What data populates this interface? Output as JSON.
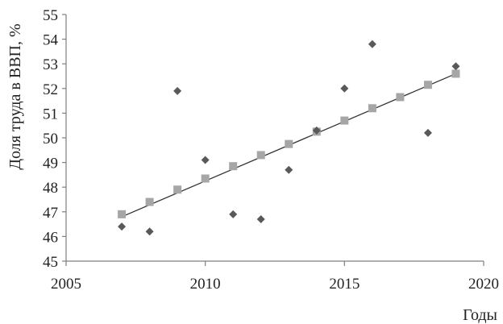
{
  "chart_data": {
    "type": "scatter",
    "title": "",
    "xlabel": "Годы",
    "ylabel": "Доля труда в ВВП, %",
    "xlim": [
      2005,
      2020
    ],
    "ylim": [
      45,
      55
    ],
    "x_ticks": [
      "2005",
      "2010",
      "2015",
      "2020"
    ],
    "y_ticks": [
      "45",
      "46",
      "47",
      "48",
      "49",
      "50",
      "51",
      "52",
      "53",
      "54",
      "55"
    ],
    "grid": false,
    "legend": "none",
    "series": [
      {
        "marker": "diamond",
        "color": "#595959",
        "points": [
          {
            "x": 2007,
            "y": 46.4
          },
          {
            "x": 2008,
            "y": 46.2
          },
          {
            "x": 2009,
            "y": 51.9
          },
          {
            "x": 2010,
            "y": 49.1
          },
          {
            "x": 2011,
            "y": 46.9
          },
          {
            "x": 2012,
            "y": 46.7
          },
          {
            "x": 2013,
            "y": 48.7
          },
          {
            "x": 2014,
            "y": 50.3
          },
          {
            "x": 2015,
            "y": 52.0
          },
          {
            "x": 2016,
            "y": 53.8
          },
          {
            "x": 2018,
            "y": 50.2
          },
          {
            "x": 2019,
            "y": 52.9
          }
        ]
      },
      {
        "marker": "square",
        "color": "#a6a6a6",
        "points": [
          {
            "x": 2007,
            "y": 46.9
          },
          {
            "x": 2008,
            "y": 47.4
          },
          {
            "x": 2009,
            "y": 47.9
          },
          {
            "x": 2010,
            "y": 48.35
          },
          {
            "x": 2011,
            "y": 48.85
          },
          {
            "x": 2012,
            "y": 49.3
          },
          {
            "x": 2013,
            "y": 49.75
          },
          {
            "x": 2014,
            "y": 50.25
          },
          {
            "x": 2015,
            "y": 50.7
          },
          {
            "x": 2016,
            "y": 51.2
          },
          {
            "x": 2017,
            "y": 51.65
          },
          {
            "x": 2018,
            "y": 52.15
          },
          {
            "x": 2019,
            "y": 52.6
          }
        ]
      }
    ],
    "trendline": {
      "color": "#333333",
      "points": [
        {
          "x": 2007,
          "y": 46.8
        },
        {
          "x": 2019,
          "y": 52.6
        }
      ]
    }
  }
}
